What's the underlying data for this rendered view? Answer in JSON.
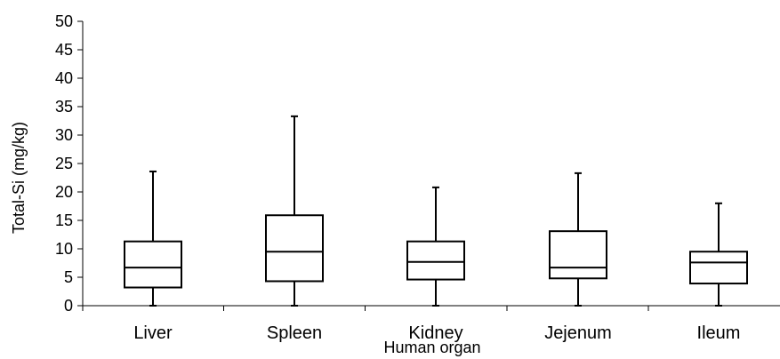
{
  "chart_data": {
    "type": "boxplot",
    "title": "",
    "xlabel": "Human organ",
    "ylabel": "Total-Si (mg/kg)",
    "ylim": [
      0,
      50
    ],
    "yticks": [
      0,
      5,
      10,
      15,
      20,
      25,
      30,
      35,
      40,
      45,
      50
    ],
    "grid": false,
    "categories": [
      "Liver",
      "Spleen",
      "Kidney",
      "Jejenum",
      "Ileum"
    ],
    "boxes": [
      {
        "category": "Liver",
        "min": 0,
        "q1": 3.2,
        "median": 6.7,
        "q3": 11.3,
        "max": 23.6
      },
      {
        "category": "Spleen",
        "min": 0,
        "q1": 4.3,
        "median": 9.5,
        "q3": 15.9,
        "max": 33.3
      },
      {
        "category": "Kidney",
        "min": 0,
        "q1": 4.6,
        "median": 7.7,
        "q3": 11.3,
        "max": 20.8
      },
      {
        "category": "Jejenum",
        "min": 0,
        "q1": 4.8,
        "median": 6.7,
        "q3": 13.1,
        "max": 23.3
      },
      {
        "category": "Ileum",
        "min": 0,
        "q1": 3.9,
        "median": 7.6,
        "q3": 9.5,
        "max": 18.0
      }
    ],
    "colors": {
      "stroke": "#000000",
      "fill": "#ffffff"
    }
  }
}
